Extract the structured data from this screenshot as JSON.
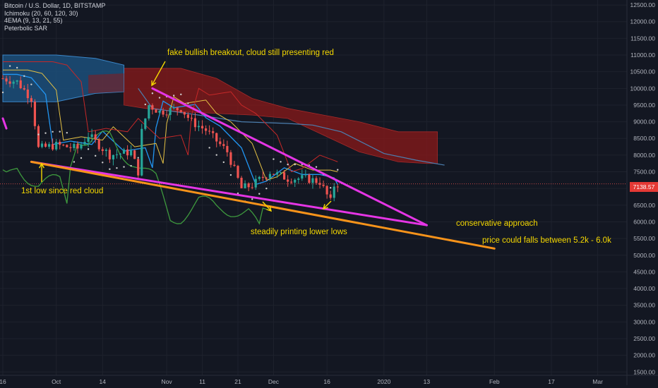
{
  "legend": {
    "symbol": "Bitcoin / U.S. Dollar, 1D, BITSTAMP",
    "indicator_1": "Ichimoku (20, 60, 120, 30)",
    "indicator_2": "4EMA (9, 13, 21, 55)",
    "indicator_3": "Peterbolic SAR"
  },
  "annotations": {
    "fake_breakout": "fake bullish breakout, cloud still presenting red",
    "first_low": "1st low since red cloud",
    "lower_lows": "steadily printing lower lows",
    "conservative": "conservative approach",
    "price_range": "price could falls between 5.2k - 6.0k"
  },
  "last_price": "7138.57",
  "colors": {
    "background": "#131722",
    "grid": "#1e222d",
    "up": "#26a69a",
    "down": "#ef5350",
    "cloud_red": "#8b1a1a",
    "cloud_blue": "#2962ff",
    "trendline_magenta": "#e535e5",
    "trendline_orange": "#f7931a",
    "annotation": "#f5d800"
  },
  "chart_data": {
    "type": "line",
    "title": "Bitcoin / U.S. Dollar, 1D, BITSTAMP",
    "y_axis": {
      "ticks": [
        "12500.00",
        "12000.00",
        "11500.00",
        "11000.00",
        "10500.00",
        "10000.00",
        "9500.00",
        "9000.00",
        "8500.00",
        "8000.00",
        "7500.00",
        "7000.00",
        "6500.00",
        "6000.00",
        "5500.00",
        "5000.00",
        "4500.00",
        "4000.00",
        "3500.00",
        "3000.00",
        "2500.00",
        "2000.00",
        "1500.00"
      ],
      "range": [
        1400,
        12650
      ]
    },
    "x_axis": {
      "ticks": [
        "16",
        "Oct",
        "14",
        "Nov",
        "11",
        "21",
        "Dec",
        "16",
        "2020",
        "13",
        "Feb",
        "17",
        "Mar"
      ],
      "range": [
        "2019-09-16",
        "2020-03-10"
      ]
    },
    "grid": true,
    "price_close": {
      "x": [
        "2019-09-16",
        "2019-09-20",
        "2019-09-24",
        "2019-09-26",
        "2019-10-01",
        "2019-10-07",
        "2019-10-10",
        "2019-10-16",
        "2019-10-22",
        "2019-10-24",
        "2019-10-25",
        "2019-10-27",
        "2019-10-30",
        "2019-11-05",
        "2019-11-08",
        "2019-11-12",
        "2019-11-18",
        "2019-11-22",
        "2019-11-25",
        "2019-11-30",
        "2019-12-05",
        "2019-12-10",
        "2019-12-14",
        "2019-12-17",
        "2019-12-18",
        "2019-12-19"
      ],
      "y": [
        10300,
        10200,
        9700,
        8200,
        8300,
        8200,
        8600,
        8000,
        8100,
        7500,
        8700,
        9500,
        9300,
        9400,
        9000,
        8750,
        8100,
        7000,
        7100,
        7500,
        7300,
        7300,
        7200,
        6600,
        7100,
        7139
      ]
    },
    "ichimoku_cloud": {
      "x": [
        "2019-10-20",
        "2019-10-26",
        "2019-11-05",
        "2019-11-15",
        "2019-11-25",
        "2019-12-05",
        "2019-12-15",
        "2019-12-25",
        "2020-01-05",
        "2020-01-13",
        "2020-01-16"
      ],
      "span_a": [
        10600,
        10600,
        10600,
        10300,
        9700,
        9400,
        9200,
        9000,
        8700,
        8700,
        8700
      ],
      "span_b": [
        9500,
        9400,
        9300,
        9250,
        9200,
        9100,
        8600,
        8100,
        7800,
        7750,
        7750
      ]
    },
    "trendlines": [
      {
        "x": [
          "2019-10-28",
          "2020-01-13"
        ],
        "y": [
          10000,
          5900
        ]
      },
      {
        "x": [
          "2019-09-24",
          "2020-01-13"
        ],
        "y": [
          7800,
          5900
        ]
      },
      {
        "x": [
          "2019-09-24",
          "2020-02-01"
        ],
        "y": [
          7800,
          5200
        ]
      },
      {
        "x": [
          "2019-09-16",
          "2019-09-17"
        ],
        "y": [
          9100,
          8800
        ]
      }
    ]
  }
}
